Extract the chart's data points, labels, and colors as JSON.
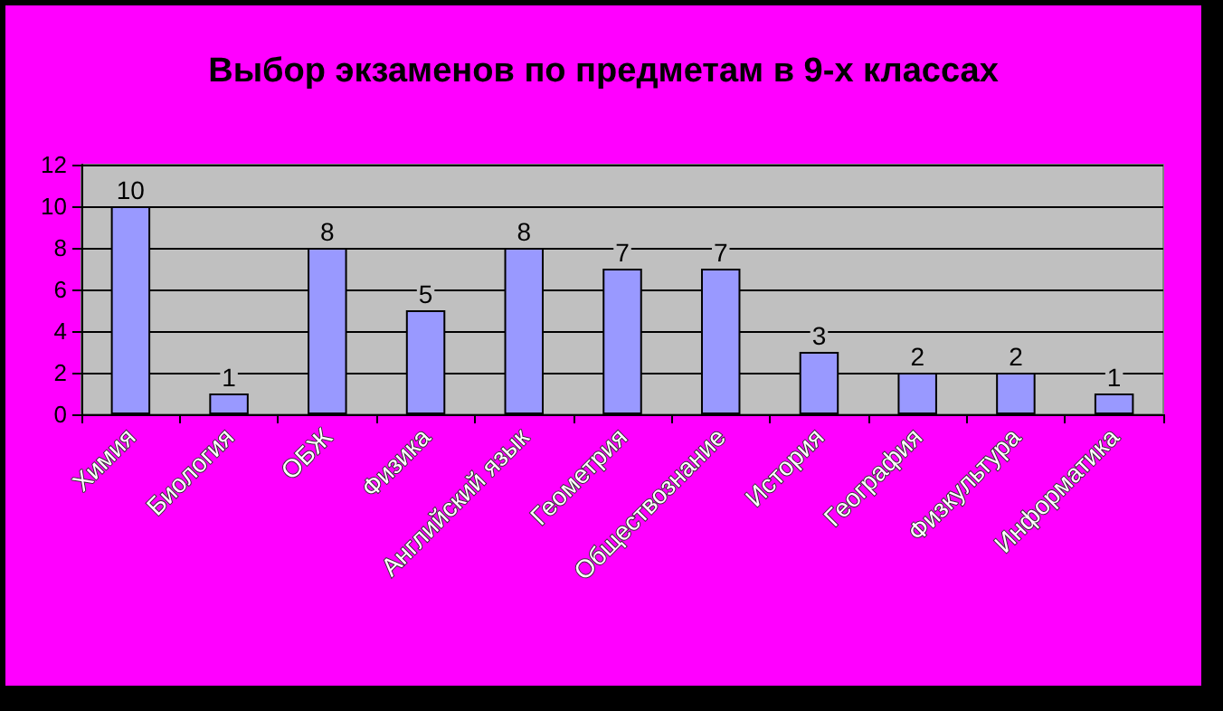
{
  "chart_data": {
    "type": "bar",
    "title": "Выбор экзаменов по предметам в 9-х классах",
    "categories": [
      "Химия",
      "Биология",
      "ОБЖ",
      "Физика",
      "Английский язык",
      "Геометрия",
      "Обществознание",
      "История",
      "География",
      "Физкультура",
      "Информатика"
    ],
    "values": [
      10,
      1,
      8,
      5,
      8,
      7,
      7,
      3,
      2,
      2,
      1
    ],
    "color": "#9999ff",
    "ylim": [
      0,
      12
    ],
    "yticks": [
      0,
      2,
      4,
      6,
      8,
      10,
      12
    ],
    "grid": "y",
    "data_labels": true
  }
}
